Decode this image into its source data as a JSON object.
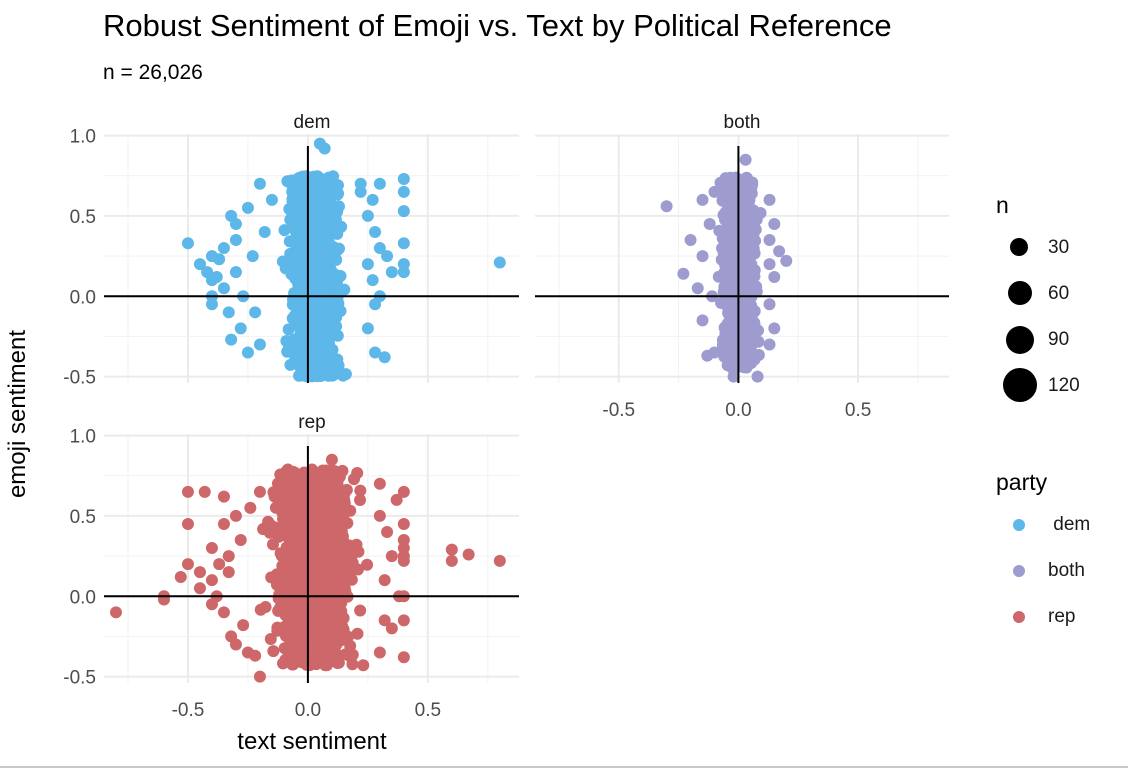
{
  "chart_data": {
    "type": "scatter",
    "title": "Robust Sentiment of Emoji vs. Text by Political Reference",
    "subtitle": "n = 26,026",
    "xlabel": "text sentiment",
    "ylabel": "emoji sentiment",
    "xlim": [
      -0.85,
      0.88
    ],
    "ylim": [
      -0.54,
      1.01
    ],
    "x_ticks": [
      "-0.5",
      "0.0",
      "0.5"
    ],
    "y_ticks": [
      "-0.5",
      "0.0",
      "0.5",
      "1.0"
    ],
    "x_tick_values": [
      -0.5,
      0.0,
      0.5
    ],
    "y_tick_values": [
      -0.5,
      0.0,
      0.5,
      1.0
    ],
    "reference_lines": {
      "x": 0.0,
      "y": 0.0
    },
    "grid": true,
    "legend_position": "right",
    "panels": [
      {
        "facet": "dem",
        "color": "#5db7e8",
        "core": {
          "x_range": [
            -0.12,
            0.17
          ],
          "y_range": [
            -0.5,
            0.75
          ]
        },
        "points": [
          [
            -0.5,
            0.33
          ],
          [
            -0.45,
            0.2
          ],
          [
            -0.42,
            0.15
          ],
          [
            -0.4,
            0.25
          ],
          [
            -0.4,
            0.1
          ],
          [
            -0.4,
            0.0
          ],
          [
            -0.4,
            -0.05
          ],
          [
            -0.38,
            0.12
          ],
          [
            -0.37,
            0.23
          ],
          [
            -0.35,
            0.3
          ],
          [
            -0.35,
            0.05
          ],
          [
            -0.33,
            -0.1
          ],
          [
            -0.32,
            0.5
          ],
          [
            -0.32,
            -0.27
          ],
          [
            -0.3,
            0.45
          ],
          [
            -0.3,
            0.35
          ],
          [
            -0.3,
            0.15
          ],
          [
            -0.28,
            -0.2
          ],
          [
            -0.27,
            0.0
          ],
          [
            -0.25,
            0.55
          ],
          [
            -0.25,
            -0.35
          ],
          [
            -0.23,
            0.25
          ],
          [
            -0.22,
            -0.1
          ],
          [
            -0.2,
            0.7
          ],
          [
            -0.2,
            -0.3
          ],
          [
            -0.18,
            0.4
          ],
          [
            -0.15,
            0.6
          ],
          [
            0.05,
            0.95
          ],
          [
            0.07,
            0.92
          ],
          [
            0.22,
            0.65
          ],
          [
            0.22,
            0.7
          ],
          [
            0.25,
            0.5
          ],
          [
            0.25,
            0.2
          ],
          [
            0.25,
            -0.2
          ],
          [
            0.27,
            0.6
          ],
          [
            0.27,
            0.1
          ],
          [
            0.28,
            0.4
          ],
          [
            0.28,
            -0.05
          ],
          [
            0.28,
            -0.35
          ],
          [
            0.3,
            0.7
          ],
          [
            0.3,
            0.3
          ],
          [
            0.3,
            0.0
          ],
          [
            0.32,
            -0.38
          ],
          [
            0.33,
            0.25
          ],
          [
            0.35,
            0.15
          ],
          [
            0.4,
            0.73
          ],
          [
            0.4,
            0.65
          ],
          [
            0.4,
            0.53
          ],
          [
            0.4,
            0.33
          ],
          [
            0.4,
            0.2
          ],
          [
            0.4,
            0.15
          ],
          [
            0.8,
            0.21
          ]
        ]
      },
      {
        "facet": "both",
        "color": "#9e9ccf",
        "core": {
          "x_range": [
            -0.09,
            0.1
          ],
          "y_range": [
            -0.45,
            0.74
          ]
        },
        "points": [
          [
            -0.3,
            0.56
          ],
          [
            -0.23,
            0.14
          ],
          [
            -0.2,
            0.35
          ],
          [
            -0.17,
            0.05
          ],
          [
            -0.15,
            0.6
          ],
          [
            -0.15,
            0.25
          ],
          [
            -0.15,
            -0.15
          ],
          [
            -0.13,
            -0.37
          ],
          [
            -0.12,
            0.45
          ],
          [
            -0.11,
            0.0
          ],
          [
            -0.1,
            -0.35
          ],
          [
            -0.1,
            0.65
          ],
          [
            -0.02,
            -0.5
          ],
          [
            0.03,
            0.85
          ],
          [
            0.08,
            -0.5
          ],
          [
            0.13,
            0.6
          ],
          [
            0.13,
            0.35
          ],
          [
            0.13,
            0.2
          ],
          [
            0.13,
            -0.05
          ],
          [
            0.13,
            -0.3
          ],
          [
            0.15,
            0.45
          ],
          [
            0.15,
            0.12
          ],
          [
            0.15,
            -0.2
          ],
          [
            0.17,
            0.28
          ],
          [
            0.2,
            0.22
          ]
        ]
      },
      {
        "facet": "rep",
        "color": "#cd6769",
        "core": {
          "x_range": [
            -0.22,
            0.26
          ],
          "y_range": [
            -0.43,
            0.79
          ]
        },
        "points": [
          [
            -0.8,
            -0.1
          ],
          [
            -0.6,
            -0.02
          ],
          [
            -0.6,
            0.0
          ],
          [
            -0.53,
            0.12
          ],
          [
            -0.5,
            0.2
          ],
          [
            -0.5,
            0.45
          ],
          [
            -0.5,
            0.65
          ],
          [
            -0.45,
            0.15
          ],
          [
            -0.45,
            0.05
          ],
          [
            -0.43,
            0.65
          ],
          [
            -0.4,
            0.3
          ],
          [
            -0.4,
            0.1
          ],
          [
            -0.4,
            -0.05
          ],
          [
            -0.38,
            0.0
          ],
          [
            -0.37,
            0.2
          ],
          [
            -0.35,
            -0.1
          ],
          [
            -0.35,
            0.45
          ],
          [
            -0.35,
            0.62
          ],
          [
            -0.33,
            0.15
          ],
          [
            -0.33,
            0.25
          ],
          [
            -0.32,
            -0.25
          ],
          [
            -0.3,
            0.5
          ],
          [
            -0.3,
            -0.3
          ],
          [
            -0.28,
            0.35
          ],
          [
            -0.27,
            -0.18
          ],
          [
            -0.25,
            -0.35
          ],
          [
            -0.24,
            0.55
          ],
          [
            -0.22,
            -0.37
          ],
          [
            -0.2,
            0.65
          ],
          [
            -0.2,
            -0.5
          ],
          [
            0.3,
            0.5
          ],
          [
            0.3,
            -0.35
          ],
          [
            0.3,
            0.7
          ],
          [
            0.32,
            0.1
          ],
          [
            0.32,
            -0.15
          ],
          [
            0.33,
            0.4
          ],
          [
            0.35,
            0.25
          ],
          [
            0.35,
            -0.2
          ],
          [
            0.37,
            0.6
          ],
          [
            0.38,
            0.0
          ],
          [
            0.4,
            0.65
          ],
          [
            0.4,
            0.45
          ],
          [
            0.4,
            0.35
          ],
          [
            0.4,
            0.3
          ],
          [
            0.4,
            0.25
          ],
          [
            0.4,
            0.22
          ],
          [
            0.4,
            -0.15
          ],
          [
            0.4,
            -0.38
          ],
          [
            0.4,
            0.0
          ],
          [
            0.6,
            0.29
          ],
          [
            0.6,
            0.22
          ],
          [
            0.67,
            0.26
          ],
          [
            0.8,
            0.22
          ],
          [
            0.1,
            0.85
          ]
        ]
      }
    ],
    "size_legend": {
      "title": "n",
      "labels": [
        "30",
        "60",
        "90",
        "120"
      ],
      "values": [
        30,
        60,
        90,
        120
      ]
    },
    "color_legend": {
      "title": "party",
      "items": [
        {
          "label": " dem",
          "color": "#5db7e8"
        },
        {
          "label": "both",
          "color": "#9e9ccf"
        },
        {
          "label": "rep",
          "color": "#cd6769"
        }
      ]
    }
  }
}
